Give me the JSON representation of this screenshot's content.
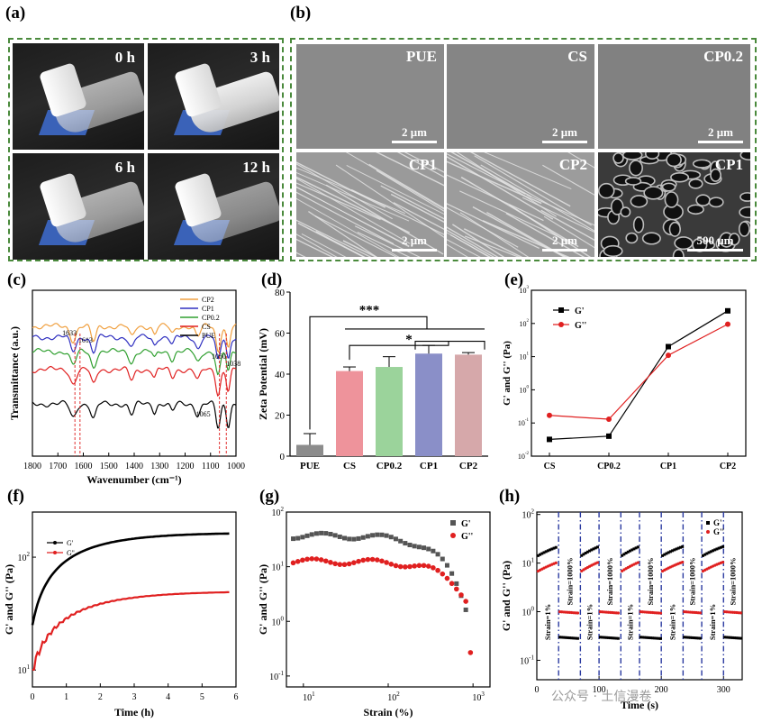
{
  "panel_a": {
    "label": "(a)",
    "photos": [
      {
        "time": "0 h"
      },
      {
        "time": "3 h"
      },
      {
        "time": "6 h"
      },
      {
        "time": "12 h"
      }
    ]
  },
  "panel_b": {
    "label": "(b)",
    "images": [
      {
        "name": "PUE",
        "scale": "2 μm"
      },
      {
        "name": "CS",
        "scale": "2 μm"
      },
      {
        "name": "CP0.2",
        "scale": "2 μm"
      },
      {
        "name": "CP1",
        "scale": "2 μm"
      },
      {
        "name": "CP2",
        "scale": "2 μm"
      },
      {
        "name": "CP1",
        "scale": "500 μm"
      }
    ]
  },
  "chart_data": [
    {
      "panel": "(c)",
      "type": "line",
      "xlabel": "Wavenumber (cm⁻¹)",
      "ylabel": "Transmittance (a.u.)",
      "xlim": [
        1800,
        1000
      ],
      "xticks": [
        1800,
        1700,
        1600,
        1500,
        1400,
        1300,
        1200,
        1100,
        1000
      ],
      "annotations": [
        "1633",
        "1613",
        "1060",
        "1038",
        "1065"
      ],
      "series": [
        {
          "name": "CP2",
          "color": "#f0a040"
        },
        {
          "name": "CP1",
          "color": "#3030c0"
        },
        {
          "name": "CP0.2",
          "color": "#30a030"
        },
        {
          "name": "CS",
          "color": "#e02020"
        },
        {
          "name": "PUE",
          "color": "#000000"
        }
      ]
    },
    {
      "panel": "(d)",
      "type": "bar",
      "ylabel": "Zeta Potential (mV)",
      "ylim": [
        0,
        80
      ],
      "yticks": [
        0,
        20,
        40,
        60,
        80
      ],
      "categories": [
        "PUE",
        "CS",
        "CP0.2",
        "CP1",
        "CP2"
      ],
      "values": [
        5.5,
        41.5,
        43.5,
        50,
        49.5
      ],
      "errors": [
        5.5,
        2,
        5,
        4,
        1
      ],
      "colors": [
        "#8c8c8c",
        "#ee939b",
        "#9bd39b",
        "#8a8fc8",
        "#d6a8aa"
      ],
      "significance": [
        "***",
        "*"
      ]
    },
    {
      "panel": "(e)",
      "type": "line",
      "ylabel": "G' and G'' (Pa)",
      "yscale": "log",
      "categories": [
        "CS",
        "CP0.2",
        "CP1",
        "CP2"
      ],
      "ytick_exponents": [
        -2,
        -1,
        0,
        1,
        2,
        3
      ],
      "series": [
        {
          "name": "G'",
          "color": "#000000",
          "values": [
            0.032,
            0.04,
            20,
            240
          ]
        },
        {
          "name": "G''",
          "color": "#e02020",
          "values": [
            0.17,
            0.13,
            11,
            95
          ]
        }
      ]
    },
    {
      "panel": "(f)",
      "type": "line",
      "xlabel": "Time (h)",
      "ylabel": "G' and G'' (Pa)",
      "yscale": "log",
      "xlim": [
        0,
        6
      ],
      "xticks": [
        0,
        1,
        2,
        3,
        4,
        5,
        6
      ],
      "ytick_exponents": [
        1,
        2
      ],
      "series": [
        {
          "name": "G'",
          "color": "#000000",
          "start": 25,
          "end": 165,
          "tau": 1.5
        },
        {
          "name": "G''",
          "color": "#e02020",
          "start": 10,
          "end": 50,
          "tau": 1.6
        }
      ]
    },
    {
      "panel": "(g)",
      "type": "scatter",
      "xlabel": "Strain (%)",
      "ylabel": "G' and G'' (Pa)",
      "xscale": "log",
      "yscale": "log",
      "xtick_exponents": [
        1,
        2,
        3
      ],
      "ytick_exponents": [
        -1,
        0,
        1,
        2
      ],
      "series": [
        {
          "name": "G'",
          "color": "#555555",
          "plateau": 37,
          "breakdown": 300
        },
        {
          "name": "G''",
          "color": "#e02020",
          "plateau": 12.5,
          "breakdown": 450
        }
      ]
    },
    {
      "panel": "(h)",
      "type": "scatter",
      "xlabel": "Time (s)",
      "ylabel": "G' and G'' (Pa)",
      "yscale": "log",
      "xlim": [
        0,
        330
      ],
      "xticks": [
        0,
        100,
        200,
        300
      ],
      "ytick_exponents": [
        -1,
        0,
        1,
        2
      ],
      "strain_labels": [
        "Strain=1%",
        "Strain=1000%"
      ],
      "series": [
        {
          "name": "G'",
          "color": "#000000",
          "high": 25,
          "low": 0.3
        },
        {
          "name": "G''",
          "color": "#e02020",
          "high": 11,
          "low": 1.0
        }
      ]
    }
  ],
  "watermark": "公众号 · 土信漫卷"
}
